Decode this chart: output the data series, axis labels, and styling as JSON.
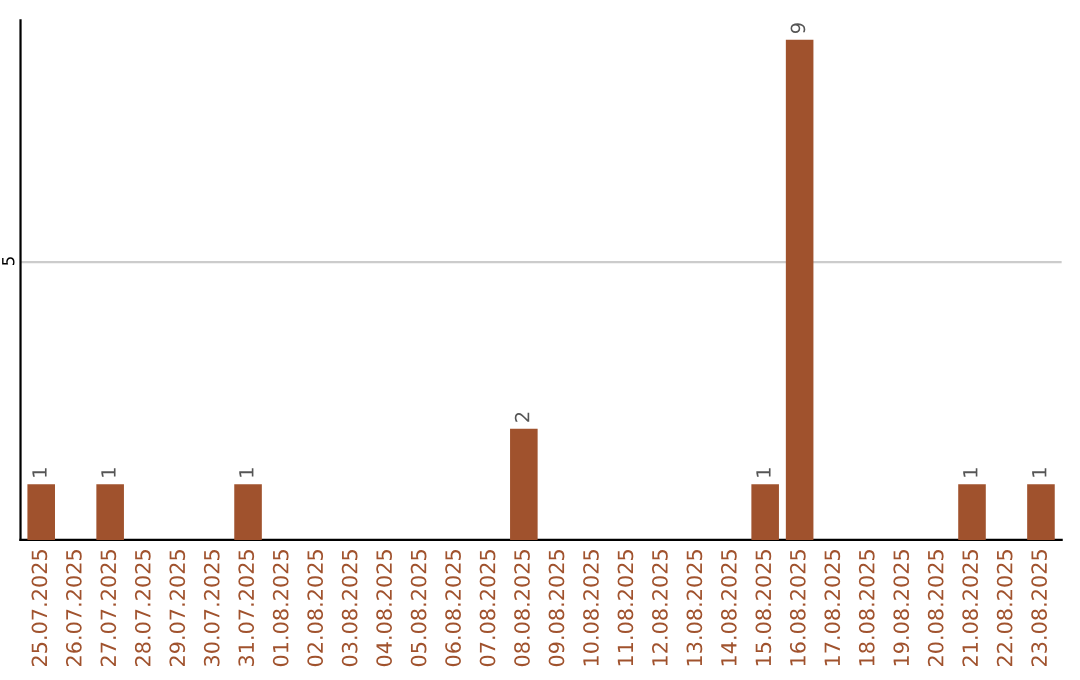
{
  "chart_data": {
    "type": "bar",
    "categories": [
      "25.07.2025",
      "26.07.2025",
      "27.07.2025",
      "28.07.2025",
      "29.07.2025",
      "30.07.2025",
      "31.07.2025",
      "01.08.2025",
      "02.08.2025",
      "03.08.2025",
      "04.08.2025",
      "05.08.2025",
      "06.08.2025",
      "07.08.2025",
      "08.08.2025",
      "09.08.2025",
      "10.08.2025",
      "11.08.2025",
      "12.08.2025",
      "13.08.2025",
      "14.08.2025",
      "15.08.2025",
      "16.08.2025",
      "17.08.2025",
      "18.08.2025",
      "19.08.2025",
      "20.08.2025",
      "21.08.2025",
      "22.08.2025",
      "23.08.2025"
    ],
    "values": [
      1,
      0,
      1,
      0,
      0,
      0,
      1,
      0,
      0,
      0,
      0,
      0,
      0,
      0,
      2,
      0,
      0,
      0,
      0,
      0,
      0,
      1,
      9,
      0,
      0,
      0,
      0,
      1,
      0,
      1
    ],
    "value_labels": [
      "1",
      null,
      "1",
      null,
      null,
      null,
      "1",
      null,
      null,
      null,
      null,
      null,
      null,
      null,
      "2",
      null,
      null,
      null,
      null,
      null,
      null,
      "1",
      "9",
      null,
      null,
      null,
      null,
      "1",
      null,
      "1"
    ],
    "color": "#a0522d",
    "ylim": [
      0,
      9.35
    ],
    "yticks": [
      5
    ],
    "grid": "y",
    "legend": false
  }
}
